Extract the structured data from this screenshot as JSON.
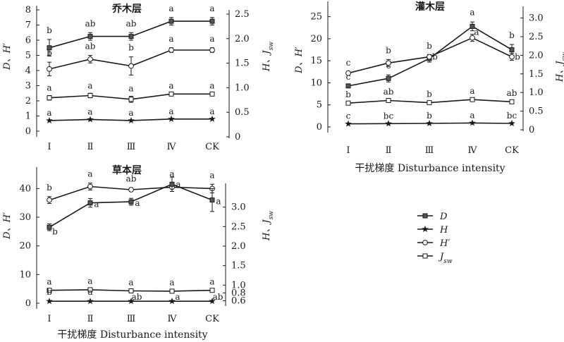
{
  "chart_data": [
    {
      "type": "line",
      "title": "乔木层",
      "categories": [
        "Ⅰ",
        "Ⅱ",
        "Ⅲ",
        "Ⅳ",
        "CK"
      ],
      "ylabel_left": "D、H′",
      "ylabel_right": "H、Jsw",
      "xlabel": "",
      "ylim_left": [
        0,
        8
      ],
      "yticks_left": [
        0,
        1,
        2,
        3,
        4,
        5,
        6,
        7,
        8
      ],
      "ylim_right": [
        0,
        2.5
      ],
      "yticks_right": [
        0,
        0.5,
        1.0,
        1.5,
        2.0,
        2.5
      ],
      "ytick_labels_right": [
        "0",
        "0.5",
        "1.0",
        "1.5",
        "2.0",
        "2.5"
      ],
      "series": [
        {
          "key": "D",
          "marker": "square-filled",
          "values": [
            5.5,
            6.25,
            6.25,
            7.25,
            7.25
          ],
          "errors": [
            0.55,
            0.25,
            0.25,
            0.25,
            0.25
          ],
          "letters": [
            "b",
            "ab",
            "ab",
            "a",
            "a"
          ]
        },
        {
          "key": "H2",
          "marker": "circle-open",
          "values": [
            4.1,
            4.75,
            4.3,
            5.35,
            5.35
          ],
          "errors": [
            0.45,
            0.25,
            0.6,
            0.15,
            0.15
          ],
          "letters": [
            "b",
            "ab",
            "b",
            "a",
            "a"
          ]
        },
        {
          "key": "J",
          "marker": "square-open",
          "values": [
            2.2,
            2.35,
            2.1,
            2.45,
            2.45
          ],
          "errors": [
            0.15,
            0.15,
            0.2,
            0.05,
            0.05
          ],
          "letters": [
            "a",
            "a",
            "a",
            "a",
            "a"
          ]
        },
        {
          "key": "H",
          "marker": "star",
          "values": [
            0.7,
            0.77,
            0.7,
            0.8,
            0.8
          ],
          "errors": [
            0,
            0,
            0,
            0,
            0
          ],
          "letters": [
            "a",
            "a",
            "a",
            "a",
            "a"
          ]
        }
      ]
    },
    {
      "type": "line",
      "title": "灌木层",
      "categories": [
        "Ⅰ",
        "Ⅱ",
        "Ⅲ",
        "Ⅳ",
        "CK"
      ],
      "ylabel_left": "D、H′",
      "ylabel_right": "H、Jsw",
      "xlabel": "干扰梯度 Disturbance intensity",
      "ylim_left": [
        0,
        27.5
      ],
      "yticks_left": [
        0,
        5,
        10,
        15,
        20,
        25
      ],
      "ylim_right": [
        0,
        3.2
      ],
      "yticks_right": [
        0,
        0.5,
        1.0,
        1.5,
        2.0,
        2.5,
        3.0
      ],
      "ytick_labels_right": [
        "0",
        "0.5",
        "1.0",
        "1.5",
        "2.0",
        "2.5",
        "3.0"
      ],
      "series": [
        {
          "key": "D",
          "marker": "square-filled",
          "values": [
            9.3,
            11.0,
            15.5,
            22.8,
            17.5
          ],
          "errors": [
            0,
            0.8,
            0.8,
            1.0,
            1.2
          ],
          "letters": [
            "c",
            "c",
            "b",
            "a",
            "b"
          ]
        },
        {
          "key": "H2",
          "marker": "circle-open",
          "values": [
            12.2,
            14.5,
            15.9,
            20.2,
            15.9
          ],
          "errors": [
            0.3,
            0.8,
            0.5,
            0.8,
            0.8
          ],
          "letters": [
            "c",
            "b",
            "b",
            "a",
            "b"
          ]
        },
        {
          "key": "J",
          "marker": "square-open",
          "values": [
            5.4,
            6.0,
            5.5,
            6.2,
            5.7
          ],
          "errors": [
            0.2,
            0.2,
            0.2,
            0.2,
            0.2
          ],
          "letters": [
            "b",
            "ab",
            "b",
            "a",
            "ab"
          ]
        },
        {
          "key": "H",
          "marker": "star",
          "values": [
            0.7,
            0.75,
            0.8,
            0.9,
            0.8
          ],
          "errors": [
            0,
            0,
            0,
            0,
            0
          ],
          "letters": [
            "c",
            "bc",
            "b",
            "a",
            "bc"
          ]
        }
      ]
    },
    {
      "type": "line",
      "title": "草本层",
      "categories": [
        "Ⅰ",
        "Ⅱ",
        "Ⅲ",
        "Ⅳ",
        "CK"
      ],
      "ylabel_left": "D、H′",
      "ylabel_right": "H、Jsw",
      "xlabel": "干扰梯度 Disturbance intensity",
      "ylim_left": [
        0,
        46
      ],
      "yticks_left": [
        0,
        10,
        20,
        30,
        40
      ],
      "ylim_right": [
        0.5,
        3.5
      ],
      "yticks_right": [
        0.6,
        0.8,
        1.0,
        1.5,
        2.0,
        2.5,
        3.0
      ],
      "ytick_labels_right": [
        "0.6",
        "0.8",
        "1.0",
        "1.5",
        "2.0",
        "2.5",
        "3.0"
      ],
      "series": [
        {
          "key": "H2",
          "marker": "circle-open",
          "values": [
            36.0,
            40.7,
            39.6,
            40.5,
            40.0
          ],
          "errors": [
            1.2,
            1.2,
            0.6,
            1.5,
            1.5
          ],
          "letters": [
            "b",
            "a",
            "ab",
            "a",
            "a"
          ]
        },
        {
          "key": "D",
          "marker": "square-filled",
          "values": [
            26.5,
            35.0,
            35.4,
            41.5,
            36.0
          ],
          "errors": [
            1.2,
            1.5,
            1.2,
            2.5,
            4.0
          ],
          "letters": [
            "b",
            "a",
            "a",
            "a",
            "a"
          ]
        },
        {
          "key": "J",
          "marker": "square-open",
          "values": [
            4.5,
            4.7,
            4.3,
            4.2,
            4.5
          ],
          "errors": [
            0.3,
            0.3,
            0.3,
            0.3,
            0.3
          ],
          "letters": [
            "a",
            "a",
            "a",
            "a",
            "a"
          ]
        },
        {
          "key": "H",
          "marker": "star",
          "values": [
            0.7,
            0.7,
            0.7,
            0.7,
            0.7
          ],
          "errors": [
            0,
            0,
            0,
            0,
            0
          ],
          "letters": [
            "b",
            "a",
            "ab",
            "a",
            "ab"
          ]
        }
      ]
    }
  ],
  "legend": {
    "placement": "bottom-right",
    "items": [
      {
        "key": "D",
        "label": "D",
        "marker": "square-filled"
      },
      {
        "key": "H",
        "label": "H",
        "marker": "star"
      },
      {
        "key": "H2",
        "label": "H′",
        "marker": "circle-open"
      },
      {
        "key": "J",
        "label": "Jsw",
        "marker": "square-open"
      }
    ]
  },
  "colors": {
    "ink": "#1a1a1a",
    "marker_fill": "#555555",
    "background": "#ffffff"
  }
}
